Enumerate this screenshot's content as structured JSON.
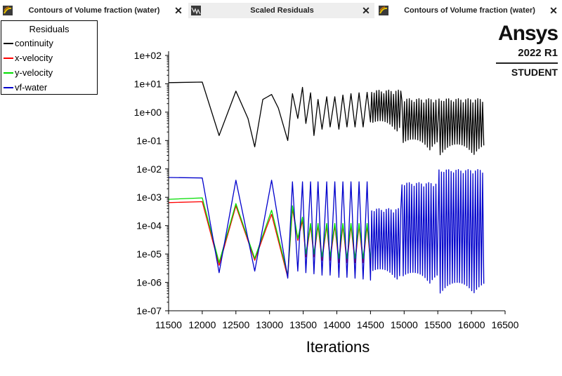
{
  "tabs": [
    {
      "label": "Contours of Volume fraction (water)",
      "close": "✕"
    },
    {
      "label": "Scaled Residuals",
      "close": "✕"
    },
    {
      "label": "Contours of Volume fraction (water)",
      "close": "✕"
    }
  ],
  "logo": {
    "name": "Ansys",
    "version": "2022 R1",
    "edition": "STUDENT"
  },
  "chart_data": {
    "type": "line",
    "title": "",
    "xlabel": "Iterations",
    "ylabel": "",
    "xlim": [
      11500,
      16500
    ],
    "ylim": [
      1e-07,
      100
    ],
    "yscale": "log",
    "x_ticks": [
      "11500",
      "12000",
      "12500",
      "13000",
      "13500",
      "14000",
      "14500",
      "15000",
      "15500",
      "16000",
      "16500"
    ],
    "y_ticks": [
      "1e+02",
      "1e+01",
      "1e+00",
      "1e-01",
      "1e-02",
      "1e-03",
      "1e-04",
      "1e-05",
      "1e-06",
      "1e-07"
    ],
    "legend": {
      "title": "Residuals",
      "placement": "top-left"
    },
    "series": [
      {
        "name": "continuity",
        "color": "#000000",
        "points": [
          [
            11500,
            11
          ],
          [
            12000,
            11.5
          ],
          [
            12250,
            0.15
          ],
          [
            12500,
            5.5
          ],
          [
            12680,
            0.6
          ],
          [
            12780,
            0.06
          ],
          [
            12900,
            2.8
          ],
          [
            13030,
            4.2
          ],
          [
            13130,
            1.4
          ],
          [
            13270,
            0.1
          ],
          [
            13340,
            4.5
          ],
          [
            13420,
            0.6
          ],
          [
            13490,
            7.5
          ],
          [
            13540,
            0.4
          ],
          [
            13610,
            4.8
          ],
          [
            13660,
            0.15
          ],
          [
            13720,
            2.8
          ],
          [
            13780,
            0.25
          ],
          [
            13850,
            3.5
          ],
          [
            13900,
            0.3
          ],
          [
            13970,
            3.5
          ],
          [
            14030,
            0.25
          ],
          [
            14090,
            4.0
          ],
          [
            14150,
            0.3
          ],
          [
            14210,
            4.5
          ],
          [
            14270,
            0.3
          ],
          [
            14330,
            4.8
          ],
          [
            14390,
            0.3
          ],
          [
            14450,
            5.0
          ],
          [
            14500,
            0.45
          ]
        ],
        "dense": [
          {
            "x0": 14500,
            "x1": 14950,
            "lo": 0.2,
            "hi": 6.0
          },
          {
            "x0": 14950,
            "x1": 15500,
            "lo": 0.045,
            "hi": 3.0
          },
          {
            "x0": 15500,
            "x1": 16200,
            "lo": 0.03,
            "hi": 3.0
          }
        ]
      },
      {
        "name": "x-velocity",
        "color": "#ff0000",
        "points": [
          [
            11500,
            0.00065
          ],
          [
            12000,
            0.0007
          ],
          [
            12250,
            4e-06
          ],
          [
            12500,
            0.0005
          ],
          [
            12780,
            6e-06
          ],
          [
            12950,
            8e-05
          ],
          [
            13030,
            0.00025
          ],
          [
            13270,
            1.5e-06
          ],
          [
            13340,
            0.0004
          ],
          [
            13420,
            3e-05
          ],
          [
            13490,
            0.00015
          ],
          [
            13540,
            8e-06
          ],
          [
            13610,
            0.0001
          ],
          [
            13660,
            8e-06
          ],
          [
            13720,
            0.0001
          ],
          [
            13780,
            6e-06
          ],
          [
            13850,
            0.0001
          ],
          [
            13900,
            6e-06
          ],
          [
            13970,
            0.0001
          ],
          [
            14030,
            5e-06
          ],
          [
            14090,
            0.0001
          ],
          [
            14150,
            5e-06
          ],
          [
            14210,
            0.0001
          ],
          [
            14270,
            5e-06
          ],
          [
            14330,
            0.0001
          ],
          [
            14390,
            5e-06
          ],
          [
            14450,
            0.0001
          ],
          [
            14500,
            5e-06
          ]
        ]
      },
      {
        "name": "y-velocity",
        "color": "#00dd00",
        "points": [
          [
            11500,
            0.00085
          ],
          [
            12000,
            0.00095
          ],
          [
            12250,
            5e-06
          ],
          [
            12500,
            0.0006
          ],
          [
            12780,
            7e-06
          ],
          [
            12950,
            0.0001
          ],
          [
            13030,
            0.00035
          ],
          [
            13270,
            1.8e-06
          ],
          [
            13340,
            0.0005
          ],
          [
            13420,
            3.5e-05
          ],
          [
            13490,
            0.0002
          ],
          [
            13540,
            1e-05
          ],
          [
            13610,
            0.00012
          ],
          [
            13660,
            1e-05
          ],
          [
            13720,
            0.00012
          ],
          [
            13780,
            8e-06
          ],
          [
            13850,
            0.00012
          ],
          [
            13900,
            8e-06
          ],
          [
            13970,
            0.00012
          ],
          [
            14030,
            7e-06
          ],
          [
            14090,
            0.00012
          ],
          [
            14150,
            7e-06
          ],
          [
            14210,
            0.00012
          ],
          [
            14270,
            7e-06
          ],
          [
            14330,
            0.00012
          ],
          [
            14390,
            7e-06
          ],
          [
            14450,
            0.00012
          ],
          [
            14500,
            7e-06
          ]
        ]
      },
      {
        "name": "vf-water",
        "color": "#0000cc",
        "points": [
          [
            11500,
            0.005
          ],
          [
            12000,
            0.0048
          ],
          [
            12250,
            2.2e-06
          ],
          [
            12500,
            0.004
          ],
          [
            12780,
            2.5e-06
          ],
          [
            13030,
            0.004
          ],
          [
            13270,
            1.4e-06
          ],
          [
            13340,
            0.0035
          ],
          [
            13420,
            2.5e-06
          ],
          [
            13490,
            0.0035
          ],
          [
            13540,
            2.2e-06
          ],
          [
            13610,
            0.0035
          ],
          [
            13660,
            2e-06
          ],
          [
            13720,
            0.0035
          ],
          [
            13780,
            1.8e-06
          ],
          [
            13850,
            0.0035
          ],
          [
            13900,
            1.8e-06
          ],
          [
            13970,
            0.0035
          ],
          [
            14030,
            1.5e-06
          ],
          [
            14090,
            0.0035
          ],
          [
            14150,
            1.5e-06
          ],
          [
            14210,
            0.0035
          ],
          [
            14270,
            1.4e-06
          ],
          [
            14330,
            0.0035
          ],
          [
            14390,
            1.3e-06
          ],
          [
            14450,
            0.0035
          ],
          [
            14500,
            1.2e-06
          ]
        ],
        "dense": [
          {
            "x0": 14500,
            "x1": 14950,
            "lo": 1.2e-06,
            "hi": 0.0004
          },
          {
            "x0": 14950,
            "x1": 15500,
            "lo": 9e-07,
            "hi": 0.0033
          },
          {
            "x0": 15500,
            "x1": 16200,
            "lo": 4e-07,
            "hi": 0.0095
          }
        ]
      }
    ]
  }
}
